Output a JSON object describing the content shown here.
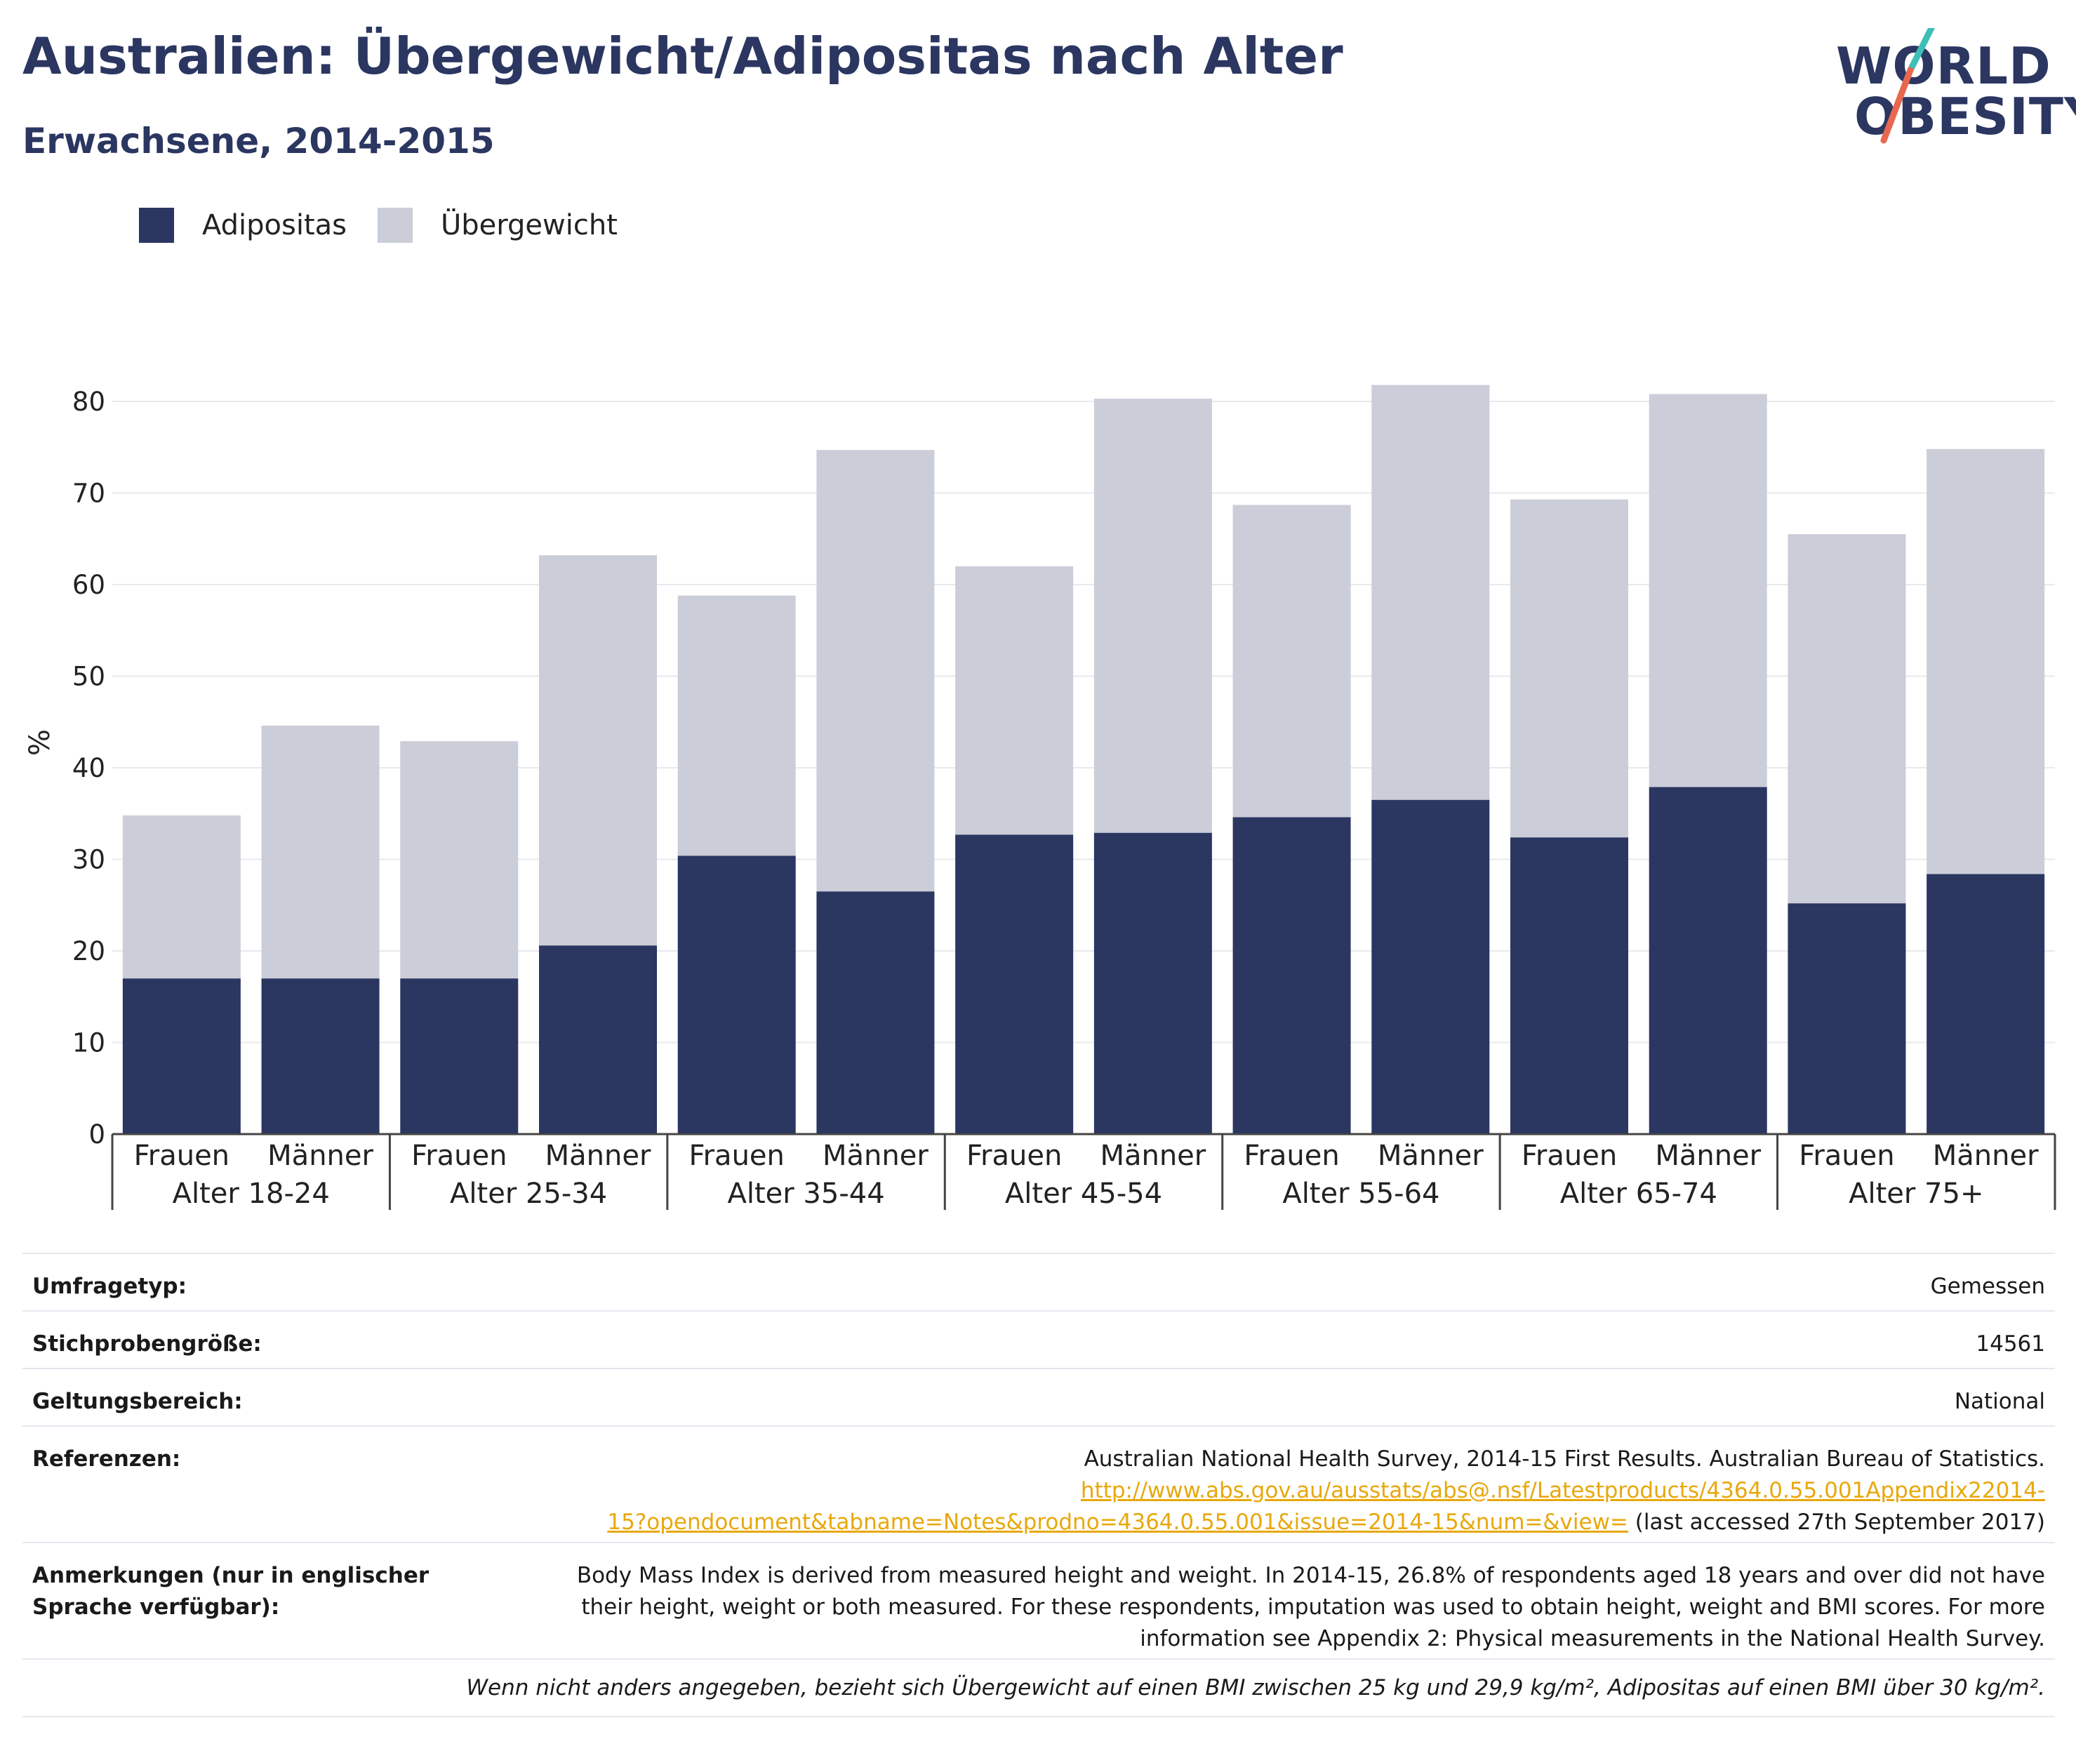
{
  "header": {
    "title": "Australien: Übergewicht/Adipositas nach Alter",
    "subtitle": "Erwachsene, 2014-2015"
  },
  "logo": {
    "line1": "WORLD",
    "line2": "OBESITY"
  },
  "legend": {
    "items": [
      {
        "label": "Adipositas",
        "color": "#2b3661"
      },
      {
        "label": "Übergewicht",
        "color": "#cbcdd8"
      }
    ]
  },
  "chart_data": {
    "type": "bar",
    "stacked": true,
    "ylabel": "%",
    "ylim": [
      0,
      85
    ],
    "yticks": [
      0,
      10,
      20,
      30,
      40,
      50,
      60,
      70,
      80
    ],
    "grid": true,
    "legend_position": "top-left",
    "groups": [
      "Alter 18-24",
      "Alter 25-34",
      "Alter 35-44",
      "Alter 45-54",
      "Alter 55-64",
      "Alter 65-74",
      "Alter 75+"
    ],
    "subcategories": [
      "Frauen",
      "Männer"
    ],
    "categories": [
      "Alter 18-24 Frauen",
      "Alter 18-24 Männer",
      "Alter 25-34 Frauen",
      "Alter 25-34 Männer",
      "Alter 35-44 Frauen",
      "Alter 35-44 Männer",
      "Alter 45-54 Frauen",
      "Alter 45-54 Männer",
      "Alter 55-64 Frauen",
      "Alter 55-64 Männer",
      "Alter 65-74 Frauen",
      "Alter 65-74 Männer",
      "Alter 75+ Frauen",
      "Alter 75+ Männer"
    ],
    "series": [
      {
        "name": "Adipositas",
        "color": "#2b3661",
        "values": [
          17.0,
          17.0,
          17.0,
          20.6,
          30.4,
          26.5,
          32.7,
          32.9,
          34.6,
          36.5,
          32.4,
          37.9,
          25.2,
          28.4
        ]
      },
      {
        "name": "Übergewicht",
        "color": "#cbcdd8",
        "values": [
          17.8,
          27.6,
          25.9,
          42.6,
          28.4,
          48.2,
          29.3,
          47.4,
          34.1,
          45.3,
          36.9,
          42.9,
          40.3,
          46.4
        ]
      }
    ]
  },
  "info": {
    "survey_type": {
      "label": "Umfragetyp:",
      "value": "Gemessen"
    },
    "sample_size": {
      "label": "Stichprobengröße:",
      "value": "14561"
    },
    "scope": {
      "label": "Geltungsbereich:",
      "value": "National"
    },
    "references": {
      "label": "Referenzen:",
      "text": "Australian National Health Survey, 2014-15 First Results. Australian Bureau of Statistics.",
      "link1": "http://www.abs.gov.au/ausstats/abs@.nsf/Latestproducts/4364.0.55.001Appendix22014-",
      "link2": "15?opendocument&tabname=Notes&prodno=4364.0.55.001&issue=2014-15&num=&view=",
      "accessed": "(last accessed 27th September 2017)"
    },
    "notes": {
      "label": "Anmerkungen (nur in englischer Sprache verfügbar):",
      "value": "Body Mass Index is derived from measured height and weight. In 2014-15, 26.8% of respondents aged 18 years and over did not have their height, weight or both measured. For these respondents, imputation was used to obtain height, weight and BMI scores. For more information see Appendix 2: Physical measurements in the National Health Survey."
    },
    "footnote": "Wenn nicht anders angegeben, bezieht sich Übergewicht auf einen BMI zwischen 25 kg und 29,9 kg/m², Adipositas auf einen BMI über 30 kg/m²."
  }
}
